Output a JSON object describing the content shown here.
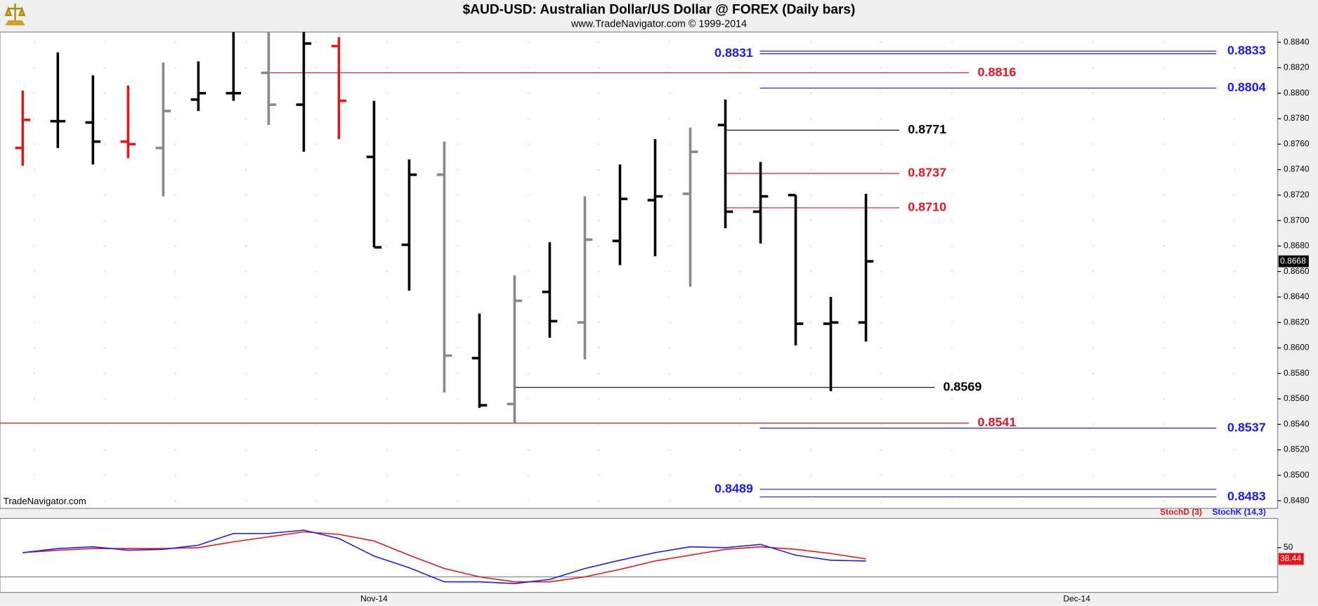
{
  "title": "$AUD-USD:  Australian Dollar/US Dollar @ FOREX  (Daily bars)",
  "subtitle": "www.TradeNavigator.com © 1999-2014",
  "watermark": "TradeNavigator.com",
  "chart_data": [
    {
      "type": "ohlc",
      "categories": [
        null,
        null,
        null,
        null,
        null,
        null,
        null,
        null,
        null,
        null,
        "Nov-14",
        null,
        null,
        null,
        null,
        null,
        null,
        null,
        null,
        null,
        null,
        null,
        null,
        null,
        null,
        null,
        null,
        null,
        null,
        null,
        "Dec-14",
        null,
        null,
        null,
        null,
        null
      ],
      "open": [
        0.8757,
        0.8778,
        0.8777,
        0.8762,
        0.8757,
        0.8795,
        0.88,
        0.8816,
        0.8791,
        0.8837,
        0.875,
        0.8681,
        0.8736,
        0.8592,
        0.8556,
        0.8644,
        0.862,
        0.8684,
        0.8716,
        0.8721,
        0.8775,
        0.8707,
        0.872,
        0.8619,
        0.862,
        null,
        null,
        null,
        null,
        null,
        null,
        null,
        null,
        null,
        null,
        null
      ],
      "high": [
        0.8802,
        0.8832,
        0.8814,
        0.8806,
        0.8824,
        0.8825,
        0.8848,
        0.8848,
        0.8848,
        0.8844,
        0.8794,
        0.8748,
        0.8762,
        0.8627,
        0.8657,
        0.8683,
        0.8719,
        0.8744,
        0.8764,
        0.8773,
        0.8795,
        0.8746,
        0.872,
        0.864,
        0.8721,
        null,
        null,
        null,
        null,
        null,
        null,
        null,
        null,
        null,
        null,
        null
      ],
      "low": [
        0.8743,
        0.8757,
        0.8744,
        0.8749,
        0.8719,
        0.8786,
        0.8794,
        0.8775,
        0.8754,
        0.8764,
        0.8679,
        0.8645,
        0.8565,
        0.8553,
        0.8541,
        0.8608,
        0.8591,
        0.8665,
        0.8672,
        0.8648,
        0.8694,
        0.8682,
        0.8602,
        0.8566,
        0.8605,
        null,
        null,
        null,
        null,
        null,
        null,
        null,
        null,
        null,
        null,
        null
      ],
      "close": [
        0.8779,
        0.8778,
        0.8762,
        0.876,
        0.8786,
        0.88,
        0.88,
        0.8791,
        0.8839,
        0.8794,
        0.8679,
        0.8736,
        0.8594,
        0.8555,
        0.8637,
        0.8621,
        0.8685,
        0.8717,
        0.8719,
        0.8754,
        0.8707,
        0.8719,
        0.8619,
        0.862,
        0.8668,
        null,
        null,
        null,
        null,
        null,
        null,
        null,
        null,
        null,
        null,
        null
      ],
      "colors": [
        "#e8141b",
        "#000000",
        "#000000",
        "#e8141b",
        "#888888",
        "#000000",
        "#000000",
        "#888888",
        "#000000",
        "#e8141b",
        "#000000",
        "#000000",
        "#888888",
        "#000000",
        "#888888",
        "#000000",
        "#888888",
        "#000000",
        "#000000",
        "#888888",
        "#000000",
        "#000000",
        "#000000",
        "#000000",
        "#000000",
        null,
        null,
        null,
        null,
        null,
        null,
        null,
        null,
        null,
        null,
        null
      ],
      "ylim": [
        0.8474,
        0.8848
      ],
      "yticks": [
        {
          "value": 0.848,
          "label": "0.8480"
        },
        {
          "value": 0.85,
          "label": "0.8500"
        },
        {
          "value": 0.852,
          "label": "0.8520"
        },
        {
          "value": 0.854,
          "label": "0.8540"
        },
        {
          "value": 0.856,
          "label": "0.8560"
        },
        {
          "value": 0.858,
          "label": "0.8580"
        },
        {
          "value": 0.86,
          "label": "0.8600"
        },
        {
          "value": 0.862,
          "label": "0.8620"
        },
        {
          "value": 0.864,
          "label": "0.8640"
        },
        {
          "value": 0.866,
          "label": "0.8660"
        },
        {
          "value": 0.868,
          "label": "0.8680"
        },
        {
          "value": 0.87,
          "label": "0.8700"
        },
        {
          "value": 0.872,
          "label": "0.8720"
        },
        {
          "value": 0.874,
          "label": "0.8740"
        },
        {
          "value": 0.876,
          "label": "0.8760"
        },
        {
          "value": 0.878,
          "label": "0.8780"
        },
        {
          "value": 0.88,
          "label": "0.8800"
        },
        {
          "value": 0.882,
          "label": "0.8820"
        },
        {
          "value": 0.884,
          "label": "0.8840"
        }
      ],
      "grid": true,
      "levels": [
        {
          "value": 0.8833,
          "color": "#1a1aff"
        },
        {
          "value": 0.8831,
          "color": "#1a1aff"
        },
        {
          "value": 0.8816,
          "color": "#e8141b"
        },
        {
          "value": 0.8804,
          "color": "#1a1aff"
        },
        {
          "value": 0.8771,
          "color": "#000000"
        },
        {
          "value": 0.8737,
          "color": "#e8141b"
        },
        {
          "value": 0.871,
          "label": "0.8710",
          "color": "#e8141b"
        },
        {
          "value": 0.8569,
          "color": "#000000"
        },
        {
          "value": 0.8541,
          "color": "#e8141b"
        },
        {
          "value": 0.8537,
          "color": "#1a1aff"
        },
        {
          "value": 0.8489,
          "color": "#1a1aff"
        },
        {
          "value": 0.8483,
          "color": "#1a1aff"
        }
      ]
    },
    {
      "type": "line",
      "series": [
        {
          "name": "StochD (3)",
          "color": "#e8141b",
          "values": [
            44.9,
            47.4,
            49.1,
            49.1,
            49.1,
            50.0,
            56.0,
            61.1,
            66.3,
            63.7,
            56.9,
            42.3,
            28.6,
            20.0,
            14.9,
            14.9,
            20.0,
            27.7,
            36.3,
            42.3,
            48.3,
            50.9,
            48.3,
            44.0,
            38.44,
            null,
            null,
            null,
            null,
            null,
            null,
            null,
            null,
            null,
            null,
            null
          ]
        },
        {
          "name": "StochK (14,3)",
          "color": "#1a1aff",
          "values": [
            44.9,
            49.1,
            50.9,
            47.4,
            48.3,
            52.6,
            64.6,
            64.6,
            68.0,
            59.4,
            41.4,
            29.4,
            14.9,
            14.9,
            13.1,
            17.4,
            28.6,
            37.1,
            44.9,
            50.9,
            50.0,
            53.4,
            42.3,
            37.1,
            36.3,
            null,
            null,
            null,
            null,
            null,
            null,
            null,
            null,
            null,
            null,
            null
          ]
        }
      ],
      "ylim": [
        4,
        80
      ],
      "yticks": [
        50
      ],
      "ref_lines": [
        20
      ]
    }
  ]
}
